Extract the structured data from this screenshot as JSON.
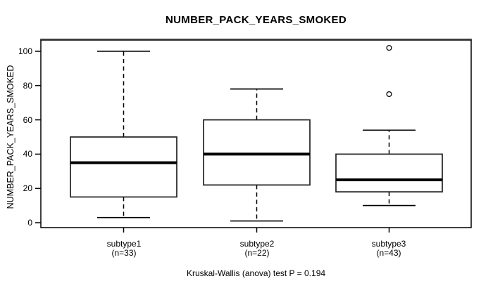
{
  "chart_data": {
    "type": "boxplot",
    "title": "NUMBER_PACK_YEARS_SMOKED",
    "ylabel": "NUMBER_PACK_YEARS_SMOKED",
    "xlabel": "",
    "ylim": [
      0,
      100
    ],
    "y_ticks": [
      0,
      20,
      40,
      60,
      80,
      100
    ],
    "grid": false,
    "legend": null,
    "groups": [
      {
        "label": "subtype1",
        "n_label": "(n=33)",
        "n": 33,
        "whisker_low": 3,
        "q1": 15,
        "median": 35,
        "q3": 50,
        "whisker_high": 100,
        "outliers": []
      },
      {
        "label": "subtype2",
        "n_label": "(n=22)",
        "n": 22,
        "whisker_low": 1,
        "q1": 22,
        "median": 40,
        "q3": 60,
        "whisker_high": 78,
        "outliers": []
      },
      {
        "label": "subtype3",
        "n_label": "(n=43)",
        "n": 43,
        "whisker_low": 10,
        "q1": 18,
        "median": 25,
        "q3": 40,
        "whisker_high": 54,
        "outliers": [
          102,
          75
        ]
      }
    ],
    "annotation": "Kruskal-Wallis (anova) test P = 0.194",
    "colors": {
      "line": "#000000",
      "box_border": "#222222",
      "box_fill": "#ffffff",
      "top_shade": "#8c8c8c",
      "background": "#ffffff"
    }
  }
}
